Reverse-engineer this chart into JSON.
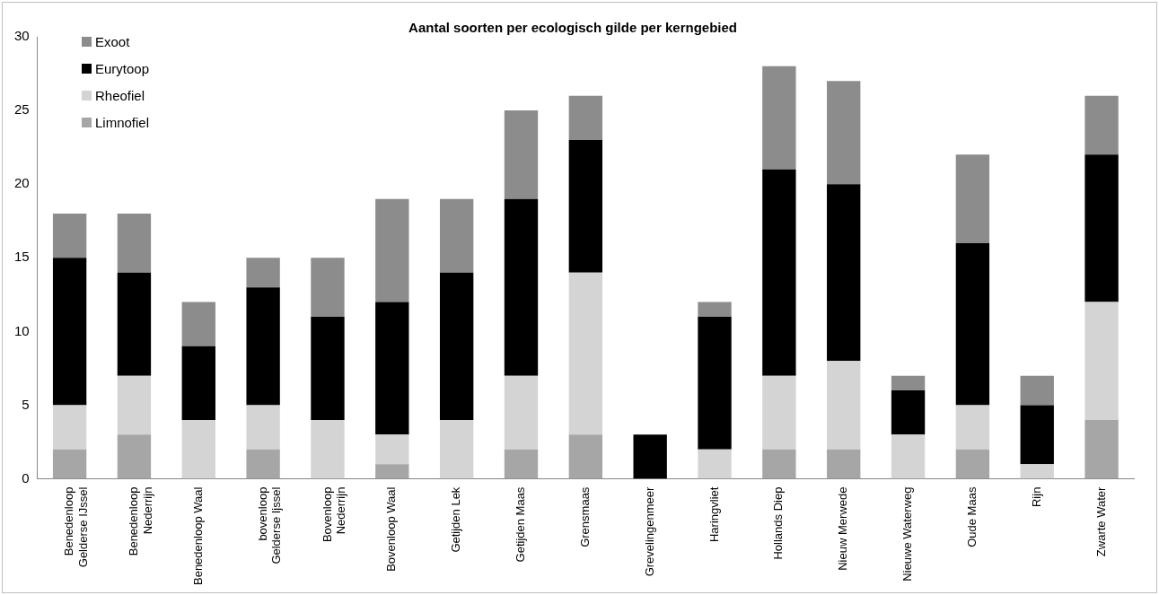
{
  "chart_data": {
    "type": "bar",
    "stacked": true,
    "title": "Aantal soorten per ecologisch gilde per kerngebied",
    "categories": [
      "Benedenloop Gelderse IJssel",
      "Benedenloop Nederrijn",
      "Benedenloop Waal",
      "bovenloop Gelderse Ijssel",
      "Bovenloop Nederrijn",
      "Bovenloop Waal",
      "Getijden Lek",
      "Getijden Maas",
      "Grensmaas",
      "Grevelingenmeer",
      "Haringvliet",
      "Hollands Diep",
      "Nieuw Merwede",
      "Nieuwe Waterweg",
      "Oude Maas",
      "Rijn",
      "Zwarte Water"
    ],
    "series": [
      {
        "name": "Limnofiel",
        "color": "#a6a6a6",
        "values": [
          2,
          3,
          0,
          2,
          0,
          1,
          0,
          2,
          3,
          0,
          0,
          2,
          2,
          0,
          2,
          0,
          4
        ]
      },
      {
        "name": "Rheofiel",
        "color": "#d4d4d4",
        "values": [
          3,
          4,
          4,
          3,
          4,
          2,
          4,
          5,
          11,
          0,
          2,
          5,
          6,
          3,
          3,
          1,
          8
        ]
      },
      {
        "name": "Eurytoop",
        "color": "#000000",
        "values": [
          10,
          7,
          5,
          8,
          7,
          9,
          10,
          12,
          9,
          3,
          9,
          14,
          12,
          3,
          11,
          4,
          10
        ]
      },
      {
        "name": "Exoot",
        "color": "#8c8c8c",
        "values": [
          3,
          4,
          3,
          2,
          4,
          7,
          5,
          6,
          3,
          0,
          1,
          7,
          7,
          1,
          6,
          2,
          4
        ]
      }
    ],
    "ylim": [
      0,
      30
    ],
    "yticks": [
      0,
      5,
      10,
      15,
      20,
      25,
      30
    ],
    "grid": false,
    "legend": "top left"
  }
}
